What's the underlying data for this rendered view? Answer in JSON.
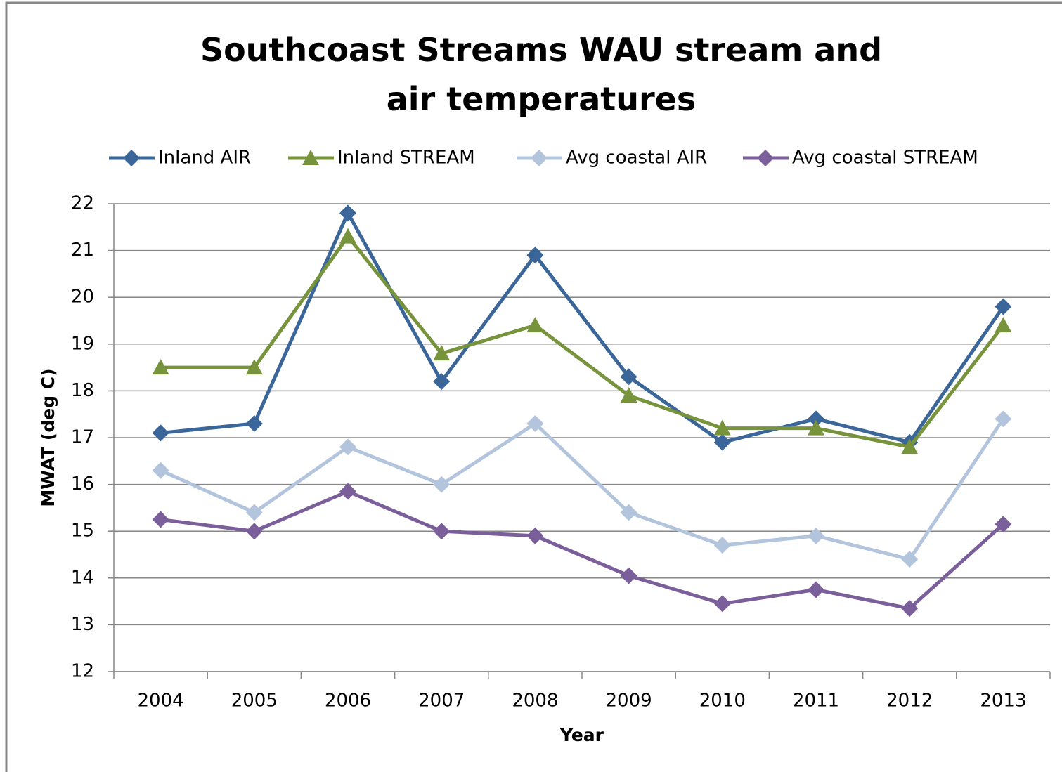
{
  "chart_data": {
    "type": "line",
    "title": "Southcoast Streams WAU stream and air temperatures",
    "x_label": "Year",
    "y_label": "MWAT (deg C)",
    "categories": [
      "2004",
      "2005",
      "2006",
      "2007",
      "2008",
      "2009",
      "2010",
      "2011",
      "2012",
      "2013"
    ],
    "series": [
      {
        "name": "Inland AIR",
        "color": "#3a6699",
        "marker": "diamond",
        "values": [
          17.1,
          17.3,
          21.8,
          18.2,
          20.9,
          18.3,
          16.9,
          17.4,
          16.9,
          19.8
        ]
      },
      {
        "name": "Inland STREAM",
        "color": "#77933c",
        "marker": "triangle",
        "values": [
          18.5,
          18.5,
          21.3,
          18.8,
          19.4,
          17.9,
          17.2,
          17.2,
          16.8,
          19.4
        ]
      },
      {
        "name": "Avg coastal AIR",
        "color": "#b3c4dd",
        "marker": "diamond",
        "values": [
          16.3,
          15.4,
          16.8,
          16.0,
          17.3,
          15.4,
          14.7,
          14.9,
          14.4,
          17.4
        ]
      },
      {
        "name": "Avg coastal STREAM",
        "color": "#7b5f9a",
        "marker": "diamond",
        "values": [
          15.25,
          15.0,
          15.85,
          15.0,
          14.9,
          14.05,
          13.45,
          13.75,
          13.35,
          15.15
        ]
      }
    ],
    "ylim": [
      12,
      22
    ],
    "yticks": [
      12,
      13,
      14,
      15,
      16,
      17,
      18,
      19,
      20,
      21,
      22
    ],
    "grid": true,
    "legend": "top"
  }
}
